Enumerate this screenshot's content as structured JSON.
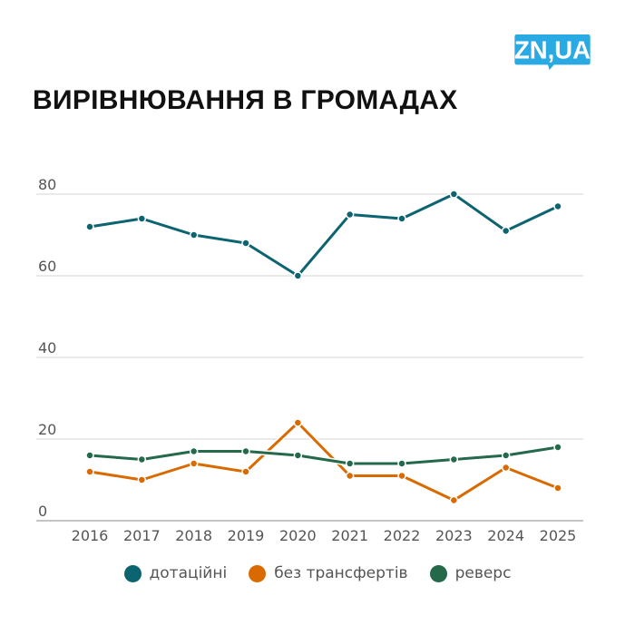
{
  "title": "ВИРІВНЮВАННЯ В ГРОМАДАХ",
  "logo": {
    "text": "ZN,UA",
    "color": "#29aae2"
  },
  "chart_data": {
    "type": "line",
    "title": "ВИРІВНЮВАННЯ В ГРОМАДАХ",
    "x": [
      2016,
      2017,
      2018,
      2019,
      2020,
      2021,
      2022,
      2023,
      2024,
      2025
    ],
    "ylim": [
      0,
      80
    ],
    "yticks": [
      0,
      20,
      40,
      60,
      80
    ],
    "grid": true,
    "legend": "bottom",
    "series": [
      {
        "name": "дотаційні",
        "color": "#0b6470",
        "values": [
          72,
          74,
          70,
          68,
          60,
          75,
          74,
          80,
          71,
          77
        ]
      },
      {
        "name": "без трансфертів",
        "color": "#d96a00",
        "values": [
          12,
          10,
          14,
          12,
          24,
          11,
          11,
          5,
          13,
          8
        ]
      },
      {
        "name": "реверс",
        "color": "#23694a",
        "values": [
          16,
          15,
          17,
          17,
          16,
          14,
          14,
          15,
          16,
          18
        ]
      }
    ]
  }
}
